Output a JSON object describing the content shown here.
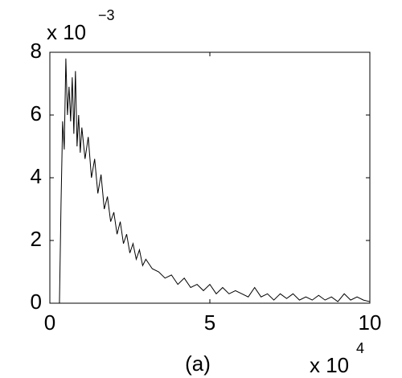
{
  "chart_data": {
    "type": "line",
    "x": [
      0.3,
      0.35,
      0.4,
      0.45,
      0.5,
      0.55,
      0.6,
      0.65,
      0.7,
      0.75,
      0.8,
      0.85,
      0.9,
      0.95,
      1.0,
      1.1,
      1.2,
      1.3,
      1.4,
      1.5,
      1.6,
      1.7,
      1.8,
      1.9,
      2.0,
      2.1,
      2.2,
      2.3,
      2.4,
      2.5,
      2.6,
      2.7,
      2.8,
      2.9,
      3.0,
      3.2,
      3.4,
      3.6,
      3.8,
      4.0,
      4.2,
      4.4,
      4.6,
      4.8,
      5.0,
      5.2,
      5.4,
      5.6,
      5.8,
      6.0,
      6.2,
      6.4,
      6.6,
      6.8,
      7.0,
      7.2,
      7.4,
      7.6,
      7.8,
      8.0,
      8.2,
      8.4,
      8.6,
      8.8,
      9.0,
      9.2,
      9.4,
      9.6,
      9.8,
      10.0
    ],
    "values": [
      0,
      3.2,
      5.8,
      4.9,
      7.8,
      6.0,
      6.9,
      5.8,
      7.2,
      5.4,
      7.4,
      5.0,
      6.0,
      4.8,
      5.6,
      4.6,
      5.3,
      4.0,
      4.6,
      3.5,
      4.1,
      3.0,
      3.4,
      2.6,
      2.9,
      2.2,
      2.6,
      1.9,
      2.2,
      1.6,
      1.9,
      1.4,
      1.7,
      1.2,
      1.4,
      1.1,
      1.0,
      0.8,
      0.9,
      0.6,
      0.8,
      0.5,
      0.6,
      0.4,
      0.6,
      0.3,
      0.5,
      0.3,
      0.4,
      0.3,
      0.2,
      0.5,
      0.2,
      0.3,
      0.1,
      0.3,
      0.15,
      0.3,
      0.1,
      0.2,
      0.1,
      0.25,
      0.1,
      0.2,
      0.05,
      0.3,
      0.1,
      0.2,
      0.1,
      0.05
    ],
    "color": "#000000",
    "xlim": [
      0,
      10
    ],
    "xticks": [
      0,
      5,
      10
    ],
    "ylim": [
      0,
      8
    ],
    "yticks": [
      0,
      2,
      4,
      6,
      8
    ],
    "x_multiplier": {
      "base": "x 10",
      "exponent": "4"
    },
    "y_multiplier": {
      "base": "x 10",
      "exponent": "−3"
    },
    "caption": "(a)"
  }
}
